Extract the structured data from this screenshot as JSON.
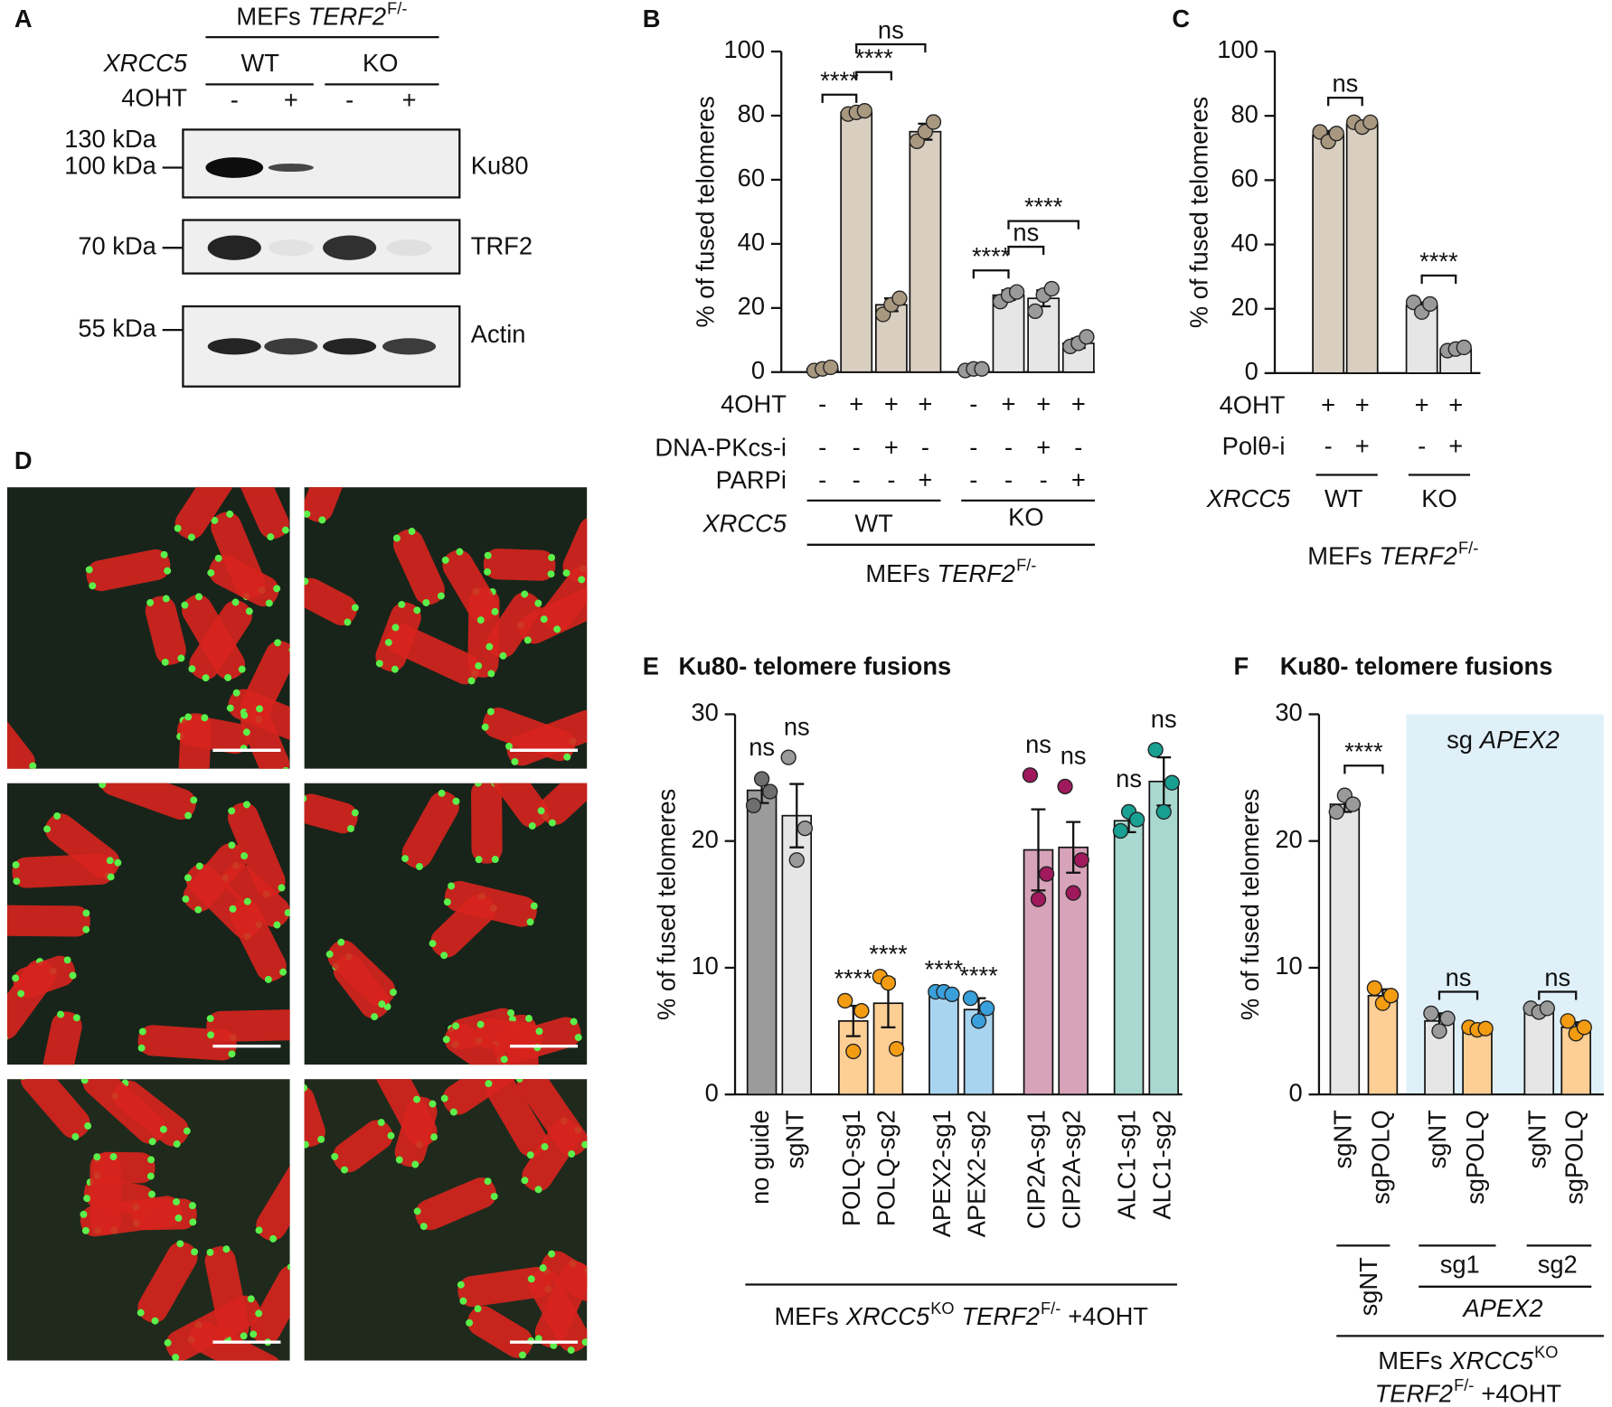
{
  "panel_labels": [
    "A",
    "B",
    "C",
    "D",
    "E",
    "F"
  ],
  "blot": {
    "header": {
      "prefix": "MEFs",
      "gene": "TERF2",
      "sup": "F/-"
    },
    "genotype_label": "XRCC5",
    "genotypes": [
      "WT",
      "KO"
    ],
    "treatment_label": "4OHT",
    "treatments": [
      "-",
      "+",
      "-",
      "+"
    ],
    "markers": [
      "130 kDa",
      "100 kDa",
      "70 kDa",
      "55 kDa"
    ],
    "proteins": [
      "Ku80",
      "TRF2",
      "Actin"
    ]
  },
  "chart_data": [
    {
      "type": "bar",
      "ylabel": "% of fused telomeres",
      "ylim": [
        0,
        100
      ],
      "yticks": [
        0,
        20,
        40,
        60,
        80,
        100
      ],
      "values": [
        1,
        81,
        21,
        75,
        1,
        24,
        23,
        9
      ],
      "errors": [
        0.3,
        0.5,
        2,
        2.5,
        0.3,
        1.5,
        2.5,
        1.5
      ],
      "points": [
        [
          0.5,
          1,
          1.5
        ],
        [
          80.5,
          81,
          81.5
        ],
        [
          18,
          21,
          23
        ],
        [
          72,
          75,
          78
        ],
        [
          0.5,
          1,
          1
        ],
        [
          22,
          24,
          25
        ],
        [
          19,
          24,
          26
        ],
        [
          8,
          9,
          11
        ]
      ],
      "colors": [
        "#d8cfc0",
        "#d8cfc0",
        "#d8cfc0",
        "#d8cfc0",
        "#e6e6e6",
        "#e6e6e6",
        "#e6e6e6",
        "#e6e6e6"
      ],
      "point_colors": [
        "#a89880",
        "#a89880",
        "#a89880",
        "#a89880",
        "#9a9a9a",
        "#9a9a9a",
        "#9a9a9a",
        "#9a9a9a"
      ],
      "conditions": [
        {
          "name": "4OHT",
          "values": [
            "-",
            "+",
            "+",
            "+",
            "-",
            "+",
            "+",
            "+"
          ]
        },
        {
          "name": "DNA-PKcs-i",
          "values": [
            "-",
            "-",
            "+",
            "-",
            "-",
            "-",
            "+",
            "-"
          ]
        },
        {
          "name": "PARPi",
          "values": [
            "-",
            "-",
            "-",
            "+",
            "-",
            "-",
            "-",
            "+"
          ]
        }
      ],
      "group_label": "XRCC5",
      "groups": [
        "WT",
        "KO"
      ],
      "footer": {
        "prefix": "MEFs",
        "gene": "TERF2",
        "sup": "F/-"
      },
      "annotations": [
        "****",
        "****",
        "ns",
        "****",
        "ns",
        "****"
      ]
    },
    {
      "type": "bar",
      "ylabel": "% of fused telomeres",
      "ylim": [
        0,
        100
      ],
      "yticks": [
        0,
        20,
        40,
        60,
        80,
        100
      ],
      "values": [
        74,
        77.5,
        21,
        7.5
      ],
      "errors": [
        1.3,
        1,
        1,
        0.6
      ],
      "points": [
        [
          75,
          72,
          74.5
        ],
        [
          78,
          76.5,
          78
        ],
        [
          22,
          19,
          21.5
        ],
        [
          7,
          7.5,
          8
        ]
      ],
      "colors": [
        "#d8cfc0",
        "#d8cfc0",
        "#e6e6e6",
        "#e6e6e6"
      ],
      "point_colors": [
        "#a89880",
        "#a89880",
        "#9a9a9a",
        "#9a9a9a"
      ],
      "conditions": [
        {
          "name": "4OHT",
          "values": [
            "+",
            "+",
            "+",
            "+"
          ]
        },
        {
          "name": "Polθ-i",
          "values": [
            "-",
            "+",
            "-",
            "+"
          ]
        }
      ],
      "group_label": "XRCC5",
      "groups": [
        "WT",
        "KO"
      ],
      "footer": {
        "prefix": "MEFs",
        "gene": "TERF2",
        "sup": "F/-"
      },
      "annotations": [
        "ns",
        "****"
      ]
    },
    {
      "type": "bar",
      "title": "Ku80- telomere fusions",
      "ylabel": "% of fused telomeres",
      "ylim": [
        0,
        30
      ],
      "yticks": [
        0,
        10,
        20,
        30
      ],
      "categories": [
        "no guide",
        "sgNT",
        "POLQ-sg1",
        "POLQ-sg2",
        "APEX2-sg1",
        "APEX2-sg2",
        "CIP2A-sg1",
        "CIP2A-sg2",
        "ALC1-sg1",
        "ALC1-sg2"
      ],
      "values": [
        24,
        22,
        5.8,
        7.2,
        8,
        6.7,
        19.3,
        19.5,
        21.6,
        24.7
      ],
      "errors": [
        1,
        2.5,
        1.2,
        1.9,
        0.1,
        0.9,
        3.2,
        2,
        0.9,
        1.9
      ],
      "points": [
        [
          22.8,
          24.9,
          23.9
        ],
        [
          26.6,
          18.5,
          21
        ],
        [
          7.4,
          3.4,
          6.6
        ],
        [
          9.3,
          8.8,
          3.6
        ],
        [
          8.1,
          8.1,
          7.9
        ],
        [
          7.6,
          5.8,
          6.8
        ],
        [
          25.2,
          15.4,
          17.4
        ],
        [
          24.3,
          15.9,
          18.5
        ],
        [
          20.8,
          22.3,
          21.7
        ],
        [
          27.2,
          22.3,
          24.6
        ]
      ],
      "colors": [
        "#9b9b9b",
        "#e6e6e6",
        "#fdcf95",
        "#fdcf95",
        "#a9d4f0",
        "#a9d4f0",
        "#d7a3b8",
        "#d7a3b8",
        "#a8d8d0",
        "#a8d8d0"
      ],
      "point_colors": [
        "#6e6e6e",
        "#9a9a9a",
        "#f39c12",
        "#f39c12",
        "#3aa0dc",
        "#3aa0dc",
        "#a0195c",
        "#a0195c",
        "#18a092",
        "#18a092"
      ],
      "annotations": [
        "ns",
        "ns",
        "****",
        "****",
        "****",
        "****",
        "ns",
        "ns",
        "ns",
        "ns"
      ],
      "footer": {
        "prefix": "MEFs",
        "gene1": "XRCC5",
        "sup1": "KO",
        "gene2": "TERF2",
        "sup2": "F/-",
        "suffix": "+4OHT"
      }
    },
    {
      "type": "bar",
      "title": "Ku80- telomere fusions",
      "ylabel": "% of fused telomeres",
      "ylim": [
        0,
        30
      ],
      "yticks": [
        0,
        10,
        20,
        30
      ],
      "categories": [
        "sgNT",
        "sgPOLQ",
        "sgNT",
        "sgPOLQ",
        "sgNT",
        "sgPOLQ"
      ],
      "values": [
        22.9,
        7.8,
        5.8,
        5.2,
        6.7,
        5.3
      ],
      "errors": [
        0.6,
        0.5,
        0.6,
        0.1,
        0.2,
        0.4
      ],
      "points": [
        [
          22.3,
          23.6,
          22.9
        ],
        [
          8.4,
          7.2,
          7.8
        ],
        [
          6.4,
          5.0,
          6.0
        ],
        [
          5.3,
          5.1,
          5.2
        ],
        [
          6.8,
          6.5,
          6.8
        ],
        [
          5.8,
          4.8,
          5.3
        ]
      ],
      "colors": [
        "#e6e6e6",
        "#fdcf95",
        "#e6e6e6",
        "#fdcf95",
        "#e6e6e6",
        "#fdcf95"
      ],
      "point_colors": [
        "#9a9a9a",
        "#f39c12",
        "#9a9a9a",
        "#f39c12",
        "#9a9a9a",
        "#f39c12"
      ],
      "shade_color": "#dff0f9",
      "shade_label": [
        "sg",
        "APEX2"
      ],
      "group_labels": [
        "sgNT",
        "sg1",
        "sg2"
      ],
      "group_name": "APEX2",
      "annotations": [
        "****",
        "ns",
        "ns"
      ],
      "footer": {
        "prefix": "MEFs",
        "gene1": "XRCC5",
        "sup1": "KO",
        "gene2": "TERF2",
        "sup2": "F/-",
        "suffix": "+4OHT"
      }
    }
  ]
}
